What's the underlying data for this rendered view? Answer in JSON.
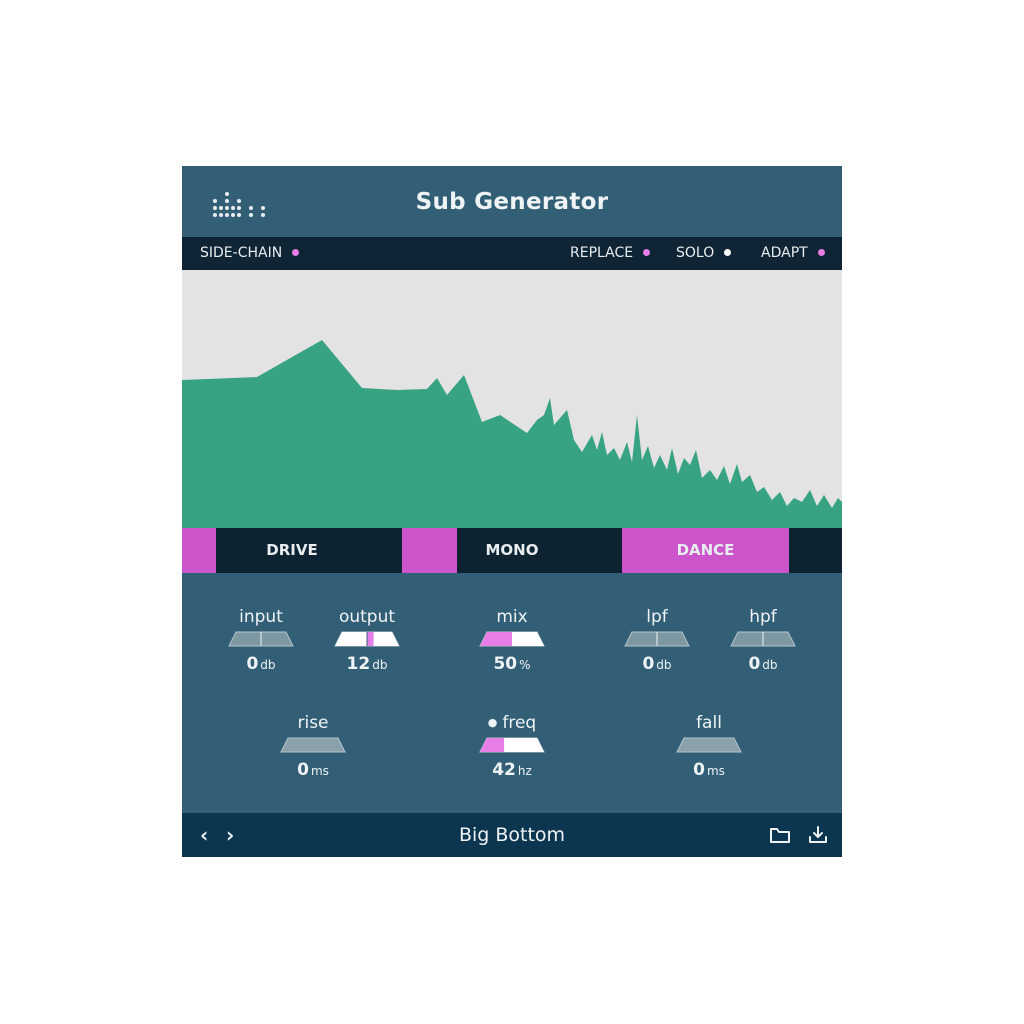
{
  "app": {
    "title": "Sub Generator"
  },
  "options": {
    "sidechain": {
      "label": "SIDE-CHAIN",
      "dot_color": "#e77ee8"
    },
    "replace": {
      "label": "REPLACE",
      "dot_color": "#e77ee8"
    },
    "solo": {
      "label": "SOLO",
      "dot_color": "#ffffff"
    },
    "adapt": {
      "label": "ADAPT",
      "dot_color": "#e77ee8"
    }
  },
  "modes": {
    "drive": {
      "label": "DRIVE",
      "active": false
    },
    "mono": {
      "label": "MONO",
      "active": false
    },
    "dance": {
      "label": "DANCE",
      "active": true
    }
  },
  "knobs": {
    "input": {
      "label": "input",
      "value": "0",
      "unit": "db",
      "level": 0.5
    },
    "output": {
      "label": "output",
      "value": "12",
      "unit": "db",
      "level": 0.6
    },
    "mix": {
      "label": "mix",
      "value": "50",
      "unit": "%",
      "level": 0.5
    },
    "lpf": {
      "label": "lpf",
      "value": "0",
      "unit": "db",
      "level": 0.5
    },
    "hpf": {
      "label": "hpf",
      "value": "0",
      "unit": "db",
      "level": 0.5
    },
    "rise": {
      "label": "rise",
      "value": "0",
      "unit": "ms",
      "level": 0
    },
    "freq": {
      "label": "freq",
      "value": "42",
      "unit": "hz",
      "level": 0.38
    },
    "fall": {
      "label": "fall",
      "value": "0",
      "unit": "ms",
      "level": 0
    }
  },
  "footer": {
    "prev": "‹",
    "next": "›",
    "preset_name": "Big Bottom"
  },
  "colors": {
    "panel": "#335f76",
    "dark_bar": "#0f2535",
    "accent_pink": "#cc55cc",
    "spectrum_fill": "#37a382",
    "spectrum_bg": "#e3e3e3"
  }
}
